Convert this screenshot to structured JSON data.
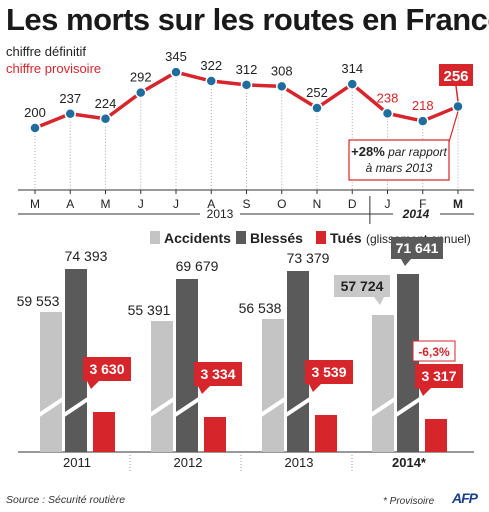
{
  "title": "Les morts sur les routes en France",
  "legend_top": {
    "definitive": "chiffre définitif",
    "provisional": "chiffre provisoire"
  },
  "colors": {
    "line_red": "#d7262b",
    "point_blue": "#1f6d9e",
    "accidents_gray": "#c4c4c4",
    "blesses_gray": "#5a5a5a",
    "tues_red": "#d7262b"
  },
  "chart_data": [
    {
      "type": "line",
      "categories": [
        "M",
        "A",
        "M",
        "J",
        "J",
        "A",
        "S",
        "O",
        "N",
        "D",
        "J",
        "F",
        "M"
      ],
      "year_labels": [
        "2013",
        "2014"
      ],
      "values": [
        200,
        237,
        224,
        292,
        345,
        322,
        312,
        308,
        252,
        314,
        238,
        218,
        256
      ],
      "value_labels": [
        "200",
        "237",
        "224",
        "292",
        "345",
        "322",
        "312",
        "308",
        "252",
        "314",
        "238",
        "218",
        "256"
      ],
      "provisional_from_index": 10,
      "highlight_index": 12,
      "annotation": {
        "bold": "+28%",
        "rest1": " par rapport",
        "rest2": "à mars 2013"
      }
    },
    {
      "type": "bar",
      "categories": [
        "2011",
        "2012",
        "2013",
        "2014*"
      ],
      "series": [
        {
          "name": "Accidents",
          "values": [
            59553,
            55391,
            56538,
            57724
          ],
          "labels": [
            "59 553",
            "55 391",
            "56 538",
            "57 724"
          ]
        },
        {
          "name": "Blessés",
          "values": [
            74393,
            69679,
            73379,
            71641
          ],
          "labels": [
            "74 393",
            "69 679",
            "73 379",
            "71 641"
          ]
        },
        {
          "name": "Tués",
          "values": [
            3630,
            3334,
            3539,
            3317
          ],
          "labels": [
            "3 630",
            "3 334",
            "3 539",
            "3 317"
          ]
        }
      ],
      "legend_suffix": "(glissement annuel)",
      "change_label": "-6,3%",
      "note": "* Provisoire"
    }
  ],
  "footer": {
    "source": "Source : Sécurité routière",
    "logo": "AFP"
  }
}
